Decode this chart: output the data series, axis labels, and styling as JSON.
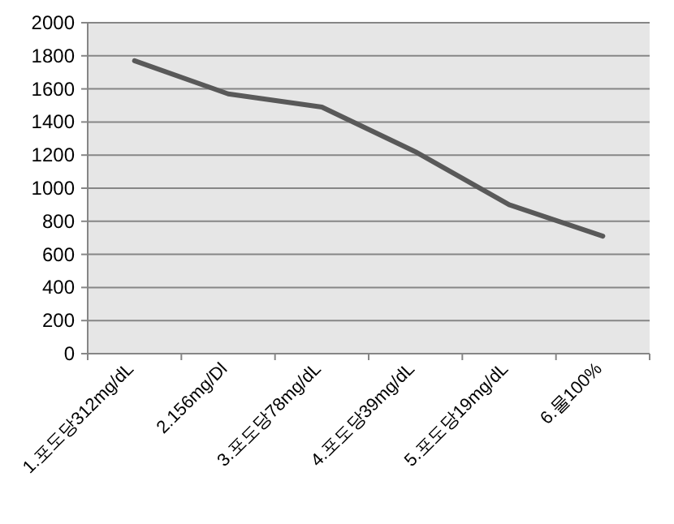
{
  "chart_data": {
    "type": "line",
    "categories": [
      "1.포도당312mg/dL",
      "2.156mg/Dl",
      "3.포도당78mg/dL",
      "4.포도당39mg/dL",
      "5.포도당19mg/dL",
      "6.물100%"
    ],
    "series": [
      {
        "color": "#595959",
        "values": [
          1770,
          1570,
          1490,
          1220,
          900,
          710
        ]
      }
    ],
    "ylim": [
      0,
      2000
    ],
    "yticks": [
      0,
      200,
      400,
      600,
      800,
      1000,
      1200,
      1400,
      1600,
      1800,
      2000
    ],
    "grid": "y",
    "marker": "none",
    "line_style": "solid"
  }
}
